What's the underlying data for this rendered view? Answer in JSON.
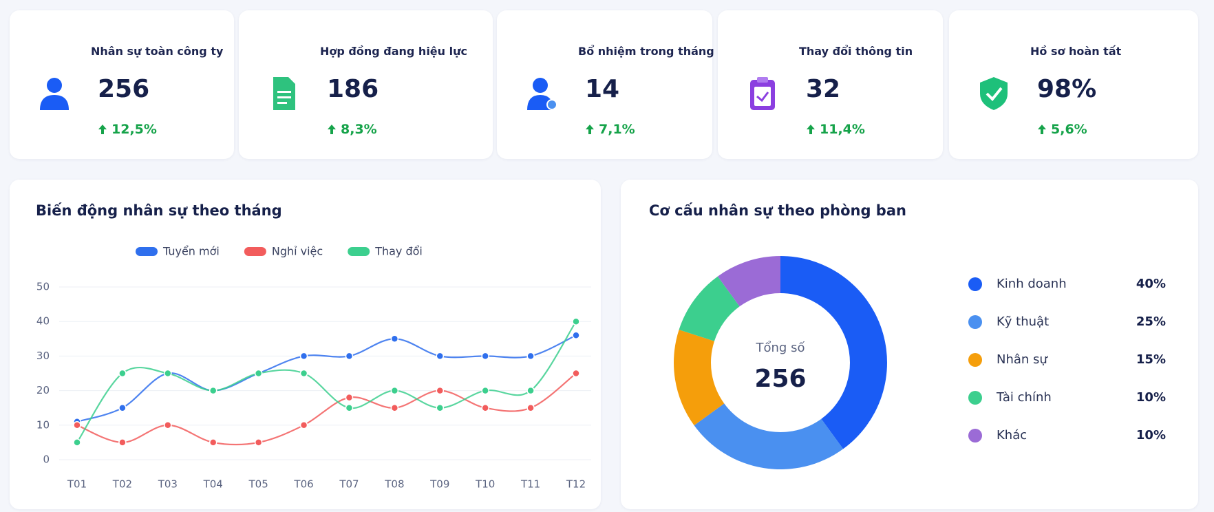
{
  "kpis": [
    {
      "label": "Nhân sự toàn công ty",
      "value": "256",
      "change": "12,5%"
    },
    {
      "label": "Hợp đồng đang hiệu lực",
      "value": "186",
      "change": "8,3%"
    },
    {
      "label": "Bổ nhiệm trong tháng",
      "value": "14",
      "change": "7,1%"
    },
    {
      "label": "Thay đổi thông tin",
      "value": "32",
      "change": "11,4%"
    },
    {
      "label": "Hồ sơ hoàn tất",
      "value": "98%",
      "change": "5,6%"
    }
  ],
  "chart_data": [
    {
      "type": "line",
      "title": "Biến động nhân sự theo tháng",
      "categories": [
        "T01",
        "T02",
        "T03",
        "T04",
        "T05",
        "T06",
        "T07",
        "T08",
        "T09",
        "T10",
        "T11",
        "T12"
      ],
      "series": [
        {
          "name": "Tuyển mới",
          "color": "#2f6fed",
          "values": [
            11,
            15,
            25,
            20,
            25,
            30,
            30,
            35,
            30,
            30,
            30,
            36
          ]
        },
        {
          "name": "Nghỉ việc",
          "color": "#f25c5c",
          "values": [
            10,
            5,
            10,
            5,
            5,
            10,
            18,
            15,
            20,
            15,
            15,
            25
          ]
        },
        {
          "name": "Thay đổi",
          "color": "#3ccf8e",
          "values": [
            5,
            25,
            25,
            20,
            25,
            25,
            15,
            20,
            15,
            20,
            20,
            40
          ]
        }
      ],
      "ylim": [
        0,
        50
      ],
      "yticks": [
        0,
        10,
        20,
        30,
        40,
        50
      ],
      "grid": true,
      "legend": "top"
    },
    {
      "type": "donut",
      "title": "Cơ cấu nhân sự theo phòng ban",
      "center_label": "Tổng số",
      "center_value": "256",
      "categories": [
        "Kinh doanh",
        "Kỹ thuật",
        "Nhân sự",
        "Tài chính",
        "Khác"
      ],
      "values": [
        40,
        25,
        15,
        10,
        10
      ],
      "value_labels": [
        "40%",
        "25%",
        "15%",
        "10%",
        "10%"
      ],
      "colors": [
        "#1a5cf5",
        "#4a90f0",
        "#f59e0b",
        "#3ccf8e",
        "#9b6bd6"
      ],
      "legend": "right"
    }
  ]
}
